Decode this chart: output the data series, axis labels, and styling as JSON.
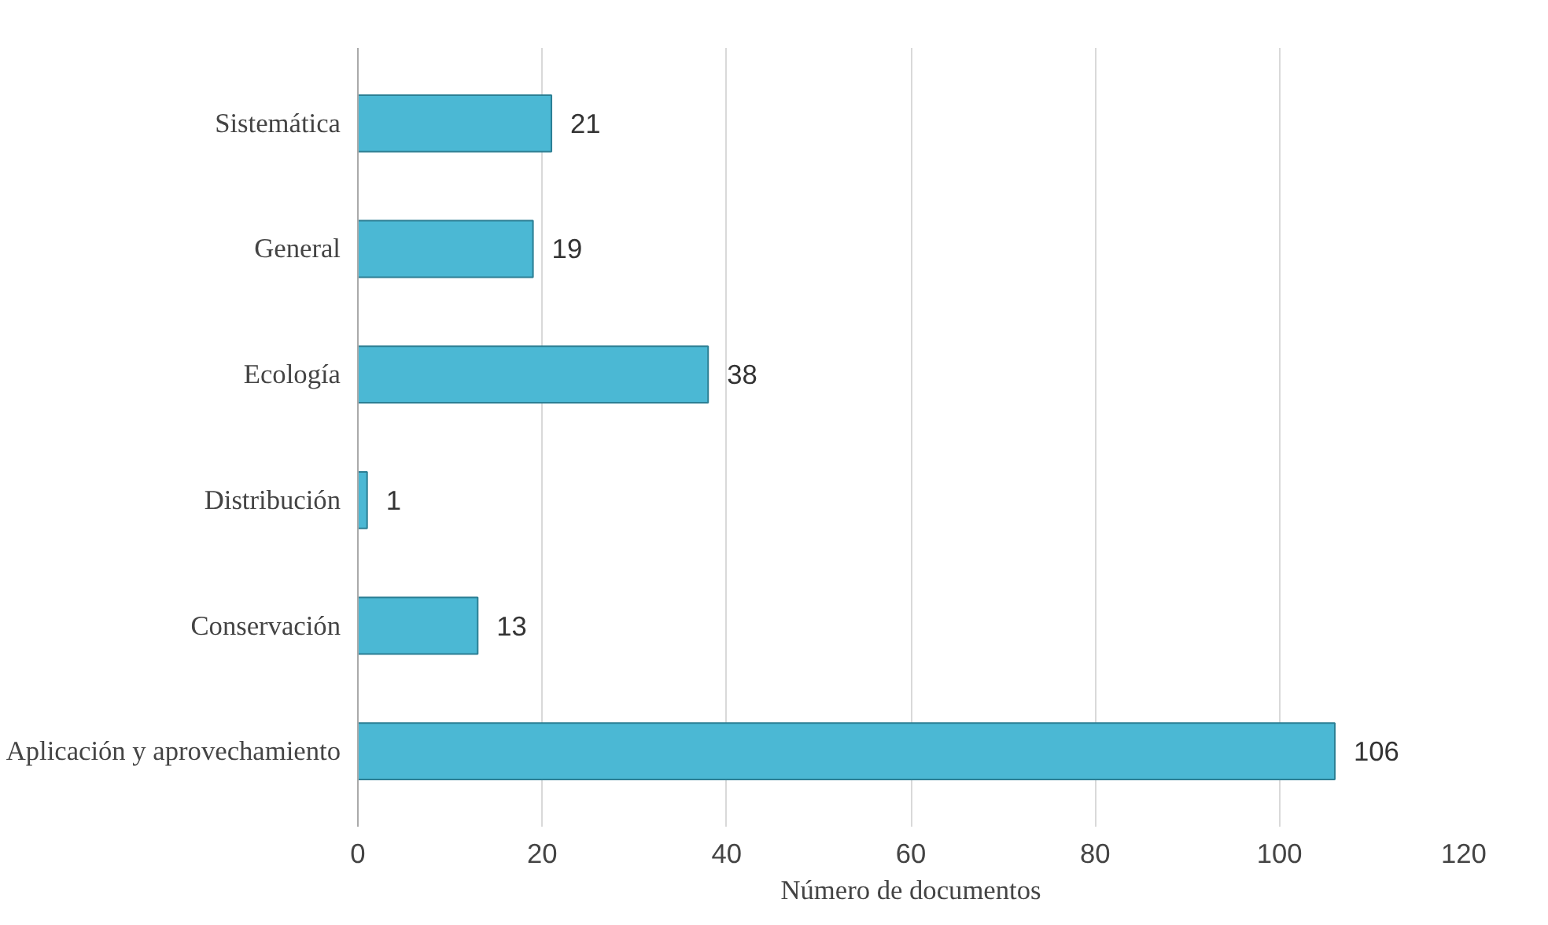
{
  "chart_data": {
    "type": "bar",
    "orientation": "horizontal",
    "categories": [
      "Sistemática",
      "General",
      "Ecología",
      "Distribución",
      "Conservación",
      "Aplicación y aprovechamiento"
    ],
    "values": [
      21,
      19,
      38,
      1,
      13,
      106
    ],
    "color": "#4bb8d4",
    "xlim": [
      0,
      120
    ],
    "xticks": [
      0,
      20,
      40,
      60,
      80,
      100,
      120
    ],
    "xlabel": "Número de documentos",
    "grid": "x",
    "data_labels": true
  }
}
